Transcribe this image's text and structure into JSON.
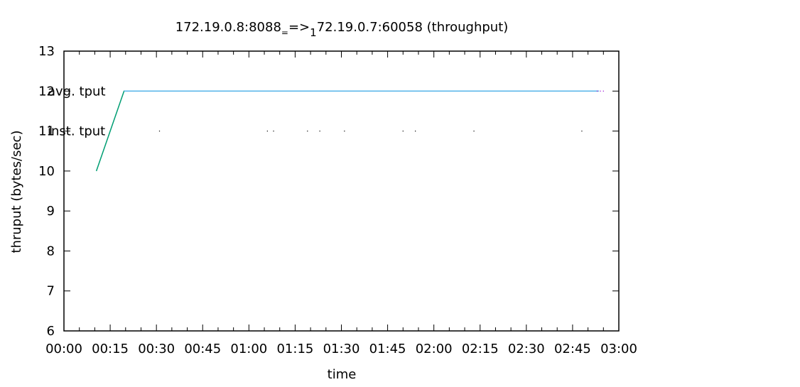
{
  "chart_data": {
    "type": "line",
    "title": "172.19.0.8:8088_==>_172.19.0.7:60058 (throughput)",
    "title_parts": {
      "a": "172.19.0.8:8088",
      "sub1": "=",
      "b": "=>",
      "sub2": "1",
      "c": "72.19.0.7:60058 (throughput)"
    },
    "xlabel": "time",
    "ylabel": "thruput (bytes/sec)",
    "xlim": [
      0,
      180
    ],
    "ylim": [
      6,
      13
    ],
    "x_ticks": [
      {
        "v": 0,
        "label": "00:00"
      },
      {
        "v": 15,
        "label": "00:15"
      },
      {
        "v": 30,
        "label": "00:30"
      },
      {
        "v": 45,
        "label": "00:45"
      },
      {
        "v": 60,
        "label": "01:00"
      },
      {
        "v": 75,
        "label": "01:15"
      },
      {
        "v": 90,
        "label": "01:30"
      },
      {
        "v": 105,
        "label": "01:45"
      },
      {
        "v": 120,
        "label": "02:00"
      },
      {
        "v": 135,
        "label": "02:15"
      },
      {
        "v": 150,
        "label": "02:30"
      },
      {
        "v": 165,
        "label": "02:45"
      },
      {
        "v": 180,
        "label": "03:00"
      }
    ],
    "y_ticks": [
      {
        "v": 6,
        "label": "6"
      },
      {
        "v": 7,
        "label": "7"
      },
      {
        "v": 8,
        "label": "8"
      },
      {
        "v": 9,
        "label": "9"
      },
      {
        "v": 10,
        "label": "10"
      },
      {
        "v": 11,
        "label": "11"
      },
      {
        "v": 12,
        "label": "12"
      },
      {
        "v": 13,
        "label": "13"
      }
    ],
    "grid": false,
    "series": [
      {
        "name": "avg. tput",
        "color": "#009e73",
        "style": "line",
        "points": [
          [
            10.5,
            10
          ],
          [
            19.5,
            12
          ],
          [
            173.5,
            12
          ]
        ]
      },
      {
        "name": "avg. tput",
        "color": "#56b4e9",
        "style": "line",
        "points": [
          [
            19.5,
            12
          ],
          [
            173.5,
            12
          ]
        ]
      },
      {
        "name": "inst. tput",
        "color": "#000000",
        "style": "points",
        "points": [
          [
            31,
            11
          ],
          [
            66,
            11
          ],
          [
            68,
            11
          ],
          [
            79,
            11
          ],
          [
            83,
            11
          ],
          [
            91,
            11
          ],
          [
            110,
            11
          ],
          [
            114,
            11
          ],
          [
            133,
            11
          ],
          [
            168,
            11
          ]
        ]
      },
      {
        "name": "",
        "color": "#9400d3",
        "style": "points",
        "points": [
          [
            173,
            12
          ],
          [
            174,
            12
          ],
          [
            175,
            12
          ]
        ]
      }
    ],
    "annotations": [
      {
        "text": "avg. tput",
        "x": 0,
        "y": 12
      },
      {
        "text": "inst. tput",
        "x": 0,
        "y": 11
      }
    ]
  }
}
